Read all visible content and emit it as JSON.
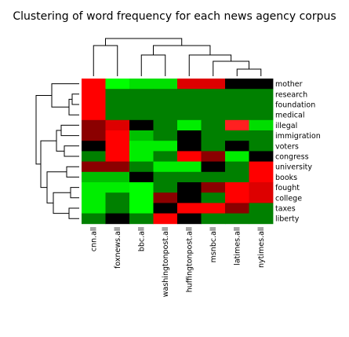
{
  "chart_data": {
    "type": "heatmap",
    "title": "Clustering of word frequency for each news agency corpus",
    "columns": [
      "cnn.all",
      "foxnews.all",
      "bbc.all",
      "washingtonpost.all",
      "huffingtonpost.all",
      "msnbc.all",
      "latimes.all",
      "nytimes.all"
    ],
    "rows": [
      "mother",
      "research",
      "foundation",
      "medical",
      "illegal",
      "immigration",
      "voters",
      "congress",
      "university",
      "books",
      "fought",
      "college",
      "taxes",
      "liberty"
    ],
    "color_scale": {
      "low": "#000000",
      "mid": "#008000",
      "high": "#ff0000",
      "bright_green": "#00ff00"
    },
    "cells": [
      [
        "#ff0000",
        "#00ff00",
        "#00e000",
        "#00e000",
        "#dd0000",
        "#dd0000",
        "#000000",
        "#000000"
      ],
      [
        "#ff0000",
        "#008000",
        "#008000",
        "#008000",
        "#008000",
        "#008000",
        "#008000",
        "#008000"
      ],
      [
        "#ff0000",
        "#008000",
        "#008000",
        "#008000",
        "#008000",
        "#008000",
        "#008000",
        "#008000"
      ],
      [
        "#ff0000",
        "#008000",
        "#008000",
        "#008000",
        "#008000",
        "#008000",
        "#008000",
        "#008000"
      ],
      [
        "#8b0000",
        "#dd0000",
        "#000000",
        "#008000",
        "#00ee00",
        "#008000",
        "#ff2020",
        "#00dd00"
      ],
      [
        "#8b0000",
        "#ff0000",
        "#00c000",
        "#008000",
        "#000000",
        "#008000",
        "#008000",
        "#008000"
      ],
      [
        "#000000",
        "#ff0000",
        "#00ee00",
        "#00ee00",
        "#000000",
        "#008000",
        "#000000",
        "#008000"
      ],
      [
        "#008000",
        "#ff0000",
        "#00ee00",
        "#008000",
        "#ff0000",
        "#8b0000",
        "#00ee00",
        "#000000"
      ],
      [
        "#8b0000",
        "#8b0000",
        "#008000",
        "#00ee00",
        "#00ee00",
        "#000000",
        "#008000",
        "#ff0000"
      ],
      [
        "#00c000",
        "#00c000",
        "#000000",
        "#008000",
        "#008000",
        "#008000",
        "#008000",
        "#ff0000"
      ],
      [
        "#00ee00",
        "#00ee00",
        "#00ff00",
        "#008000",
        "#000000",
        "#8b0000",
        "#ff0000",
        "#dd0000"
      ],
      [
        "#00ee00",
        "#008000",
        "#00ff00",
        "#8b0000",
        "#000000",
        "#008000",
        "#ff0000",
        "#dd0000"
      ],
      [
        "#00ee00",
        "#008000",
        "#00ff00",
        "#000000",
        "#ff0000",
        "#ff0000",
        "#8b0000",
        "#008000"
      ],
      [
        "#008000",
        "#000000",
        "#008000",
        "#ff0000",
        "#000000",
        "#008000",
        "#008000",
        "#008000"
      ]
    ]
  }
}
